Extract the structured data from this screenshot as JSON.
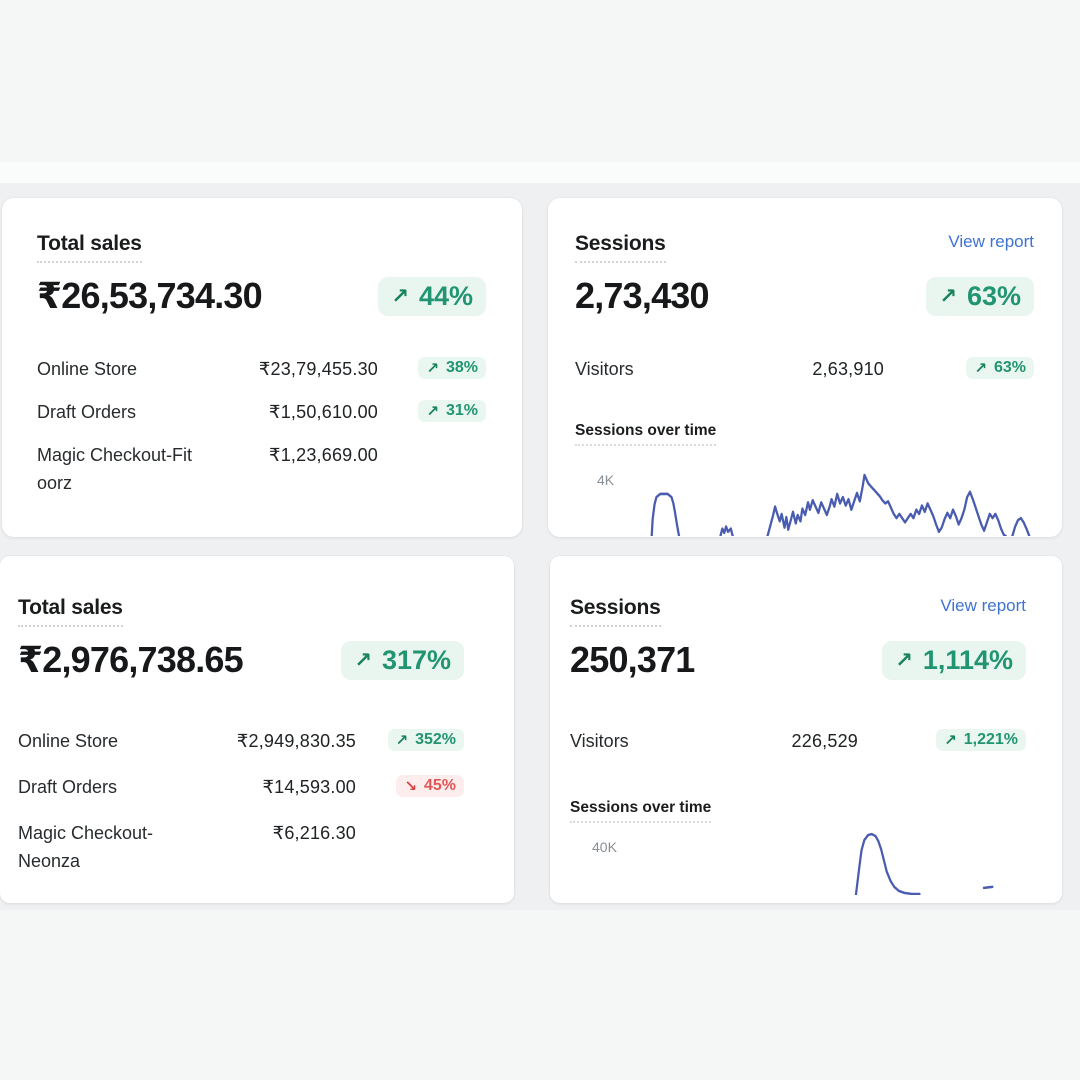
{
  "colors": {
    "background": "#f5f6f6",
    "panel_background": "#eff0f2",
    "card_background": "#ffffff",
    "text_primary": "#1a1c1d",
    "positive_green": "#219571",
    "positive_green_bg": "#e9f5ef",
    "negative_red": "#e05757",
    "negative_red_bg": "#fdeded",
    "link_blue": "#3f73d3",
    "sparkline_blue": "#4a5cb0",
    "axis_tick_gray": "#8a8f94"
  },
  "panel_top": {
    "total_sales": {
      "title": "Total sales",
      "value": "₹26,53,734.30",
      "delta": {
        "arrow": "↗",
        "value": "44%"
      },
      "rows": [
        {
          "label": "Online Store",
          "value": "₹23,79,455.30",
          "arrow": "↗",
          "delta": "38%"
        },
        {
          "label": "Draft Orders",
          "value": "₹1,50,610.00",
          "arrow": "↗",
          "delta": "31%"
        },
        {
          "label": "Magic Checkout-Fitoorz",
          "value": "₹1,23,669.00"
        }
      ]
    },
    "sessions": {
      "title": "Sessions",
      "link": "View report",
      "value": "2,73,430",
      "delta": {
        "arrow": "↗",
        "value": "63%"
      },
      "rows": [
        {
          "label": "Visitors",
          "value": "2,63,910",
          "arrow": "↗",
          "delta": "63%"
        }
      ],
      "chart_heading": "Sessions over time",
      "y_tick": "4K"
    }
  },
  "panel_bottom": {
    "total_sales": {
      "title": "Total sales",
      "value": "₹2,976,738.65",
      "delta": {
        "arrow": "↗",
        "value": "317%"
      },
      "rows": [
        {
          "label": "Online Store",
          "value": "₹2,949,830.35",
          "arrow": "↗",
          "delta": "352%"
        },
        {
          "label": "Draft Orders",
          "value": "₹14,593.00",
          "arrow": "↘",
          "delta": "45%"
        },
        {
          "label": "Magic Checkout-Neonza",
          "value": "₹6,216.30"
        }
      ]
    },
    "sessions": {
      "title": "Sessions",
      "link": "View report",
      "value": "250,371",
      "delta": {
        "arrow": "↗",
        "value": "1,114%"
      },
      "rows": [
        {
          "label": "Visitors",
          "value": "226,529",
          "arrow": "↗",
          "delta": "1,221%"
        }
      ],
      "chart_heading": "Sessions over time",
      "y_tick": "40K"
    }
  },
  "chart_data": [
    {
      "type": "line",
      "title": "Sessions over time",
      "panel": "top",
      "ylabel_tick": "4K",
      "legend": "none",
      "note": "jagged daily-sessions sparkline, clipped at card bottom; values peak near 4K gridline",
      "segments": {
        "seg1": "22,78 23,62 25,48 27,41 31,38 39,38 43,41 45,47 47,57 49,68 51,78",
        "seg2": "95,78 97,71 99,75 101,69 103,74 106,71 108,78",
        "seg3": "145,78 148,68 151,58 153,50 155,56 158,64 160,57 163,70 165,60 167,72 170,62 172,55 175,66 177,58 180,64 182,52 185,58 188,46 190,53 193,44 196,50 199,56 202,46 205,52 208,58 211,50 213,43 216,50 219,38 222,47 225,41 228,49 231,43 234,53 237,45 240,37 243,45 246,31 248,20 250,24 252,28 255,31 258,34 261,37 264,40 267,44 270,47 273,45 276,51 279,57 282,61 285,57 288,61 291,65 294,61 297,57 300,61 303,53 306,57 309,49 312,55 315,47 318,53 321,59 324,67 327,74 330,70 333,62 336,56 339,61 342,53 345,59 348,67 351,61 354,53 357,41 360,36 363,43 366,51 369,59 372,67 375,73 378,65 381,57 384,61 387,57 390,63 393,71 396,77 398,78",
        "seg4": "405,78 408,69 411,63 414,61 417,65 420,71 423,78"
      }
    },
    {
      "type": "line",
      "title": "Sessions over time",
      "panel": "bottom",
      "ylabel_tick": "40K",
      "legend": "none",
      "note": "single spike sparkline reaching ~40K, clipped at card bottom",
      "segments": {
        "seg1": "246,63 248,48 250,33 252,19 255,9 259,4 263,3 267,5 270,10 273,18 276,29 279,40 283,49 287,55 292,59 298,61 306,62 314,62",
        "seg2": "383,56 392,55"
      }
    }
  ]
}
